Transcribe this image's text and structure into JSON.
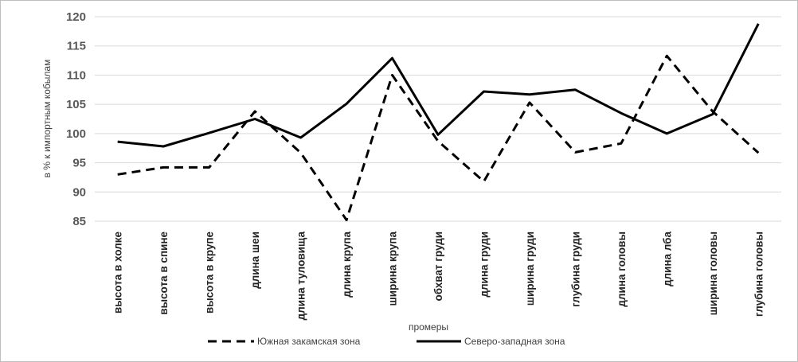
{
  "chart_data": {
    "type": "line",
    "title": "",
    "xlabel": "промеры",
    "ylabel": "в % к импортным кобылам",
    "ylim": [
      85,
      120
    ],
    "yticks": [
      85,
      90,
      95,
      100,
      105,
      110,
      115,
      120
    ],
    "grid": true,
    "legend_position": "bottom",
    "categories": [
      "высота в холке",
      "высота в спине",
      "высота в крупе",
      "длина шеи",
      "длина туловища",
      "длина крупа",
      "ширина крупа",
      "обхват груди",
      "длина груди",
      "ширина груди",
      "глубина груди",
      "длина головы",
      "длина лба",
      "ширина головы",
      "глубина головы"
    ],
    "series": [
      {
        "name": "Южная закамская зона",
        "style": "dashed",
        "color": "#000000",
        "values": [
          93,
          94.2,
          94.2,
          103.8,
          96.7,
          85.2,
          110,
          98.7,
          91.8,
          105.3,
          96.8,
          98.3,
          113.3,
          103.8,
          96.7
        ]
      },
      {
        "name": "Северо-западная зона",
        "style": "solid",
        "color": "#000000",
        "values": [
          98.6,
          97.8,
          100.1,
          102.5,
          99.3,
          105.1,
          112.9,
          99.8,
          107.2,
          106.7,
          107.5,
          103.5,
          100,
          103.3,
          118.8
        ]
      }
    ]
  }
}
